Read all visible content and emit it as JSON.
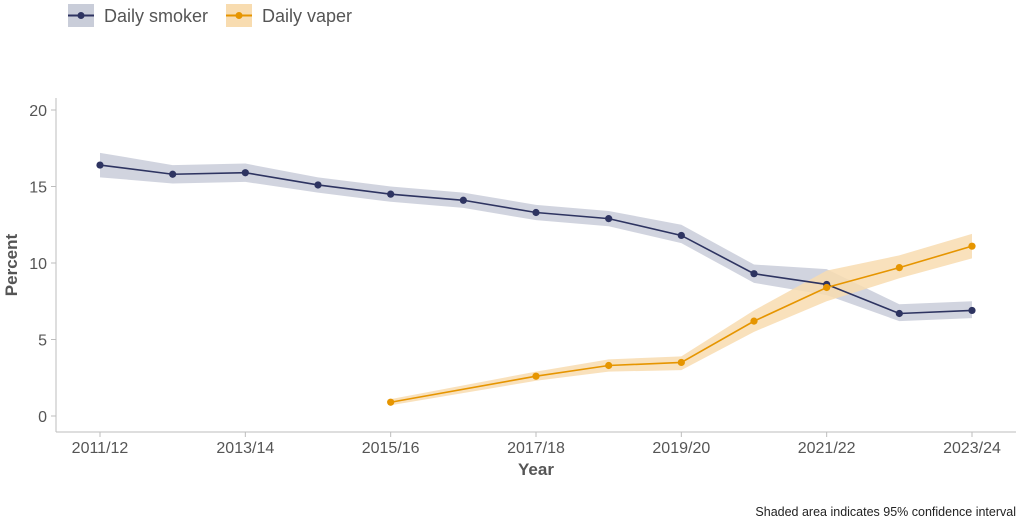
{
  "chart_data": {
    "type": "line",
    "title": "",
    "xlabel": "Year",
    "ylabel": "Percent",
    "caption": "Shaded area indicates 95% confidence interval",
    "ylim": [
      0,
      20
    ],
    "yticks": [
      0,
      5,
      10,
      15,
      20
    ],
    "x_tick_labels": [
      "2011/12",
      "2013/14",
      "2015/16",
      "2017/18",
      "2019/20",
      "2021/22",
      "2023/24"
    ],
    "x_periods": [
      "2011/12",
      "2012/13",
      "2013/14",
      "2014/15",
      "2015/16",
      "2016/17",
      "2017/18",
      "2018/19",
      "2019/20",
      "2020/21",
      "2021/22",
      "2022/23",
      "2023/24"
    ],
    "grid": false,
    "legend_position": "top-left",
    "series": [
      {
        "name": "Daily smoker",
        "color": "#2e3461",
        "band_color": "#c9cdd9",
        "x": [
          "2011/12",
          "2012/13",
          "2013/14",
          "2014/15",
          "2015/16",
          "2016/17",
          "2017/18",
          "2018/19",
          "2019/20",
          "2020/21",
          "2021/22",
          "2022/23",
          "2023/24"
        ],
        "values": [
          16.4,
          15.8,
          15.9,
          15.1,
          14.5,
          14.1,
          13.3,
          12.9,
          11.8,
          9.3,
          8.6,
          6.7,
          6.9
        ],
        "ci_lower": [
          15.6,
          15.2,
          15.3,
          14.6,
          14.0,
          13.6,
          12.8,
          12.4,
          11.3,
          8.7,
          7.9,
          6.2,
          6.4
        ],
        "ci_upper": [
          17.2,
          16.4,
          16.5,
          15.6,
          15.0,
          14.6,
          13.8,
          13.4,
          12.5,
          9.9,
          9.6,
          7.3,
          7.5
        ]
      },
      {
        "name": "Daily vaper",
        "color": "#e69500",
        "band_color": "#f8dcb0",
        "x": [
          "2015/16",
          "2017/18",
          "2018/19",
          "2019/20",
          "2020/21",
          "2021/22",
          "2022/23",
          "2023/24"
        ],
        "values": [
          0.9,
          2.6,
          3.3,
          3.5,
          6.2,
          8.4,
          9.7,
          11.1
        ],
        "ci_lower": [
          0.7,
          2.3,
          2.9,
          3.0,
          5.5,
          7.5,
          9.0,
          10.3
        ],
        "ci_upper": [
          1.1,
          2.9,
          3.7,
          3.9,
          6.9,
          9.5,
          10.5,
          11.9
        ]
      }
    ]
  }
}
